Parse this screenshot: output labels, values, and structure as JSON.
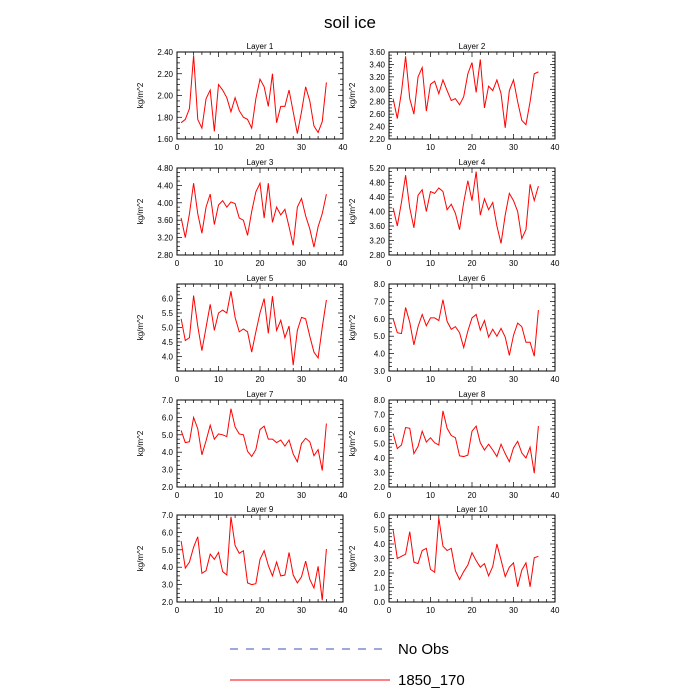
{
  "figure": {
    "title": "soil ice",
    "legend": {
      "placement": "bottom-center",
      "items": [
        {
          "label": "No Obs",
          "color": "#3a50c8",
          "style": "dashed"
        },
        {
          "label": "1850_170",
          "color": "#ff0000",
          "style": "solid"
        }
      ]
    }
  },
  "chart_data": [
    {
      "type": "line",
      "title": "Layer 1",
      "xlabel": "",
      "ylabel": "kg/m^2",
      "xlim": [
        0,
        40
      ],
      "ylim": [
        1.6,
        2.4
      ],
      "xticks": [
        0,
        10,
        20,
        30,
        40
      ],
      "yticks": [
        1.6,
        1.8,
        2.0,
        2.2,
        2.4
      ],
      "x": [
        1,
        2,
        3,
        4,
        5,
        6,
        7,
        8,
        9,
        10,
        11,
        12,
        13,
        14,
        15,
        16,
        17,
        18,
        19,
        20,
        21,
        22,
        23,
        24,
        25,
        26,
        27,
        28,
        29,
        30,
        31,
        32,
        33,
        34,
        35,
        36
      ],
      "series": [
        {
          "name": "1850_170",
          "color": "#ff0000",
          "values": [
            1.75,
            1.78,
            1.88,
            2.37,
            1.78,
            1.7,
            1.97,
            2.05,
            1.67,
            2.1,
            2.05,
            1.98,
            1.85,
            1.98,
            1.86,
            1.8,
            1.78,
            1.7,
            1.97,
            2.15,
            2.08,
            1.9,
            2.2,
            1.75,
            1.9,
            1.9,
            2.05,
            1.85,
            1.65,
            1.85,
            2.08,
            1.95,
            1.72,
            1.66,
            1.76,
            2.12
          ]
        }
      ]
    },
    {
      "type": "line",
      "title": "Layer 2",
      "xlabel": "",
      "ylabel": "kg/m^2",
      "xlim": [
        0,
        40
      ],
      "ylim": [
        2.2,
        3.6
      ],
      "xticks": [
        0,
        10,
        20,
        30,
        40
      ],
      "yticks": [
        2.2,
        2.4,
        2.6,
        2.8,
        3.0,
        3.2,
        3.4,
        3.6
      ],
      "x": [
        1,
        2,
        3,
        4,
        5,
        6,
        7,
        8,
        9,
        10,
        11,
        12,
        13,
        14,
        15,
        16,
        17,
        18,
        19,
        20,
        21,
        22,
        23,
        24,
        25,
        26,
        27,
        28,
        29,
        30,
        31,
        32,
        33,
        34,
        35,
        36
      ],
      "series": [
        {
          "name": "1850_170",
          "color": "#ff0000",
          "values": [
            2.85,
            2.53,
            2.95,
            3.53,
            2.85,
            2.6,
            3.2,
            3.35,
            2.65,
            3.08,
            3.13,
            2.93,
            3.15,
            2.98,
            2.82,
            2.85,
            2.75,
            2.88,
            3.25,
            3.43,
            2.95,
            3.48,
            2.7,
            3.05,
            2.98,
            3.15,
            2.93,
            2.38,
            2.98,
            3.15,
            2.8,
            2.5,
            2.43,
            2.8,
            3.25,
            3.28
          ]
        }
      ]
    },
    {
      "type": "line",
      "title": "Layer 3",
      "xlabel": "",
      "ylabel": "kg/m^2",
      "xlim": [
        0,
        40
      ],
      "ylim": [
        2.8,
        4.8
      ],
      "xticks": [
        0,
        10,
        20,
        30,
        40
      ],
      "yticks": [
        2.8,
        3.2,
        3.6,
        4.0,
        4.4,
        4.8
      ],
      "x": [
        1,
        2,
        3,
        4,
        5,
        6,
        7,
        8,
        9,
        10,
        11,
        12,
        13,
        14,
        15,
        16,
        17,
        18,
        19,
        20,
        21,
        22,
        23,
        24,
        25,
        26,
        27,
        28,
        29,
        30,
        31,
        32,
        33,
        34,
        35,
        36
      ],
      "series": [
        {
          "name": "1850_170",
          "color": "#ff0000",
          "values": [
            3.65,
            3.2,
            3.75,
            4.45,
            3.75,
            3.3,
            3.9,
            4.2,
            3.5,
            3.95,
            4.05,
            3.9,
            4.02,
            3.98,
            3.65,
            3.6,
            3.25,
            3.8,
            4.25,
            4.45,
            3.65,
            4.45,
            3.55,
            3.9,
            3.72,
            3.85,
            3.45,
            3.02,
            3.9,
            4.1,
            3.7,
            3.4,
            2.98,
            3.45,
            3.75,
            4.2
          ]
        }
      ]
    },
    {
      "type": "line",
      "title": "Layer 4",
      "xlabel": "",
      "ylabel": "kg/m^2",
      "xlim": [
        0,
        40
      ],
      "ylim": [
        2.8,
        5.2
      ],
      "xticks": [
        0,
        10,
        20,
        30,
        40
      ],
      "yticks": [
        2.8,
        3.2,
        3.6,
        4.0,
        4.4,
        4.8,
        5.2
      ],
      "x": [
        1,
        2,
        3,
        4,
        5,
        6,
        7,
        8,
        9,
        10,
        11,
        12,
        13,
        14,
        15,
        16,
        17,
        18,
        19,
        20,
        21,
        22,
        23,
        24,
        25,
        26,
        27,
        28,
        29,
        30,
        31,
        32,
        33,
        34,
        35,
        36
      ],
      "series": [
        {
          "name": "1850_170",
          "color": "#ff0000",
          "values": [
            4.1,
            3.6,
            4.25,
            5.0,
            4.1,
            3.55,
            4.45,
            4.6,
            4.0,
            4.55,
            4.5,
            4.65,
            4.55,
            4.05,
            4.2,
            3.95,
            3.5,
            4.25,
            4.85,
            4.3,
            5.1,
            3.9,
            4.35,
            4.05,
            4.25,
            3.6,
            3.12,
            3.9,
            4.5,
            4.3,
            4.0,
            3.25,
            3.5,
            4.75,
            4.3,
            4.7
          ]
        }
      ]
    },
    {
      "type": "line",
      "title": "Layer 5",
      "xlabel": "",
      "ylabel": "kg/m^2",
      "xlim": [
        0,
        40
      ],
      "ylim": [
        3.5,
        6.5
      ],
      "xticks": [
        0,
        10,
        20,
        30,
        40
      ],
      "yticks": [
        4.0,
        4.5,
        5.0,
        5.5,
        6.0
      ],
      "x": [
        1,
        2,
        3,
        4,
        5,
        6,
        7,
        8,
        9,
        10,
        11,
        12,
        13,
        14,
        15,
        16,
        17,
        18,
        19,
        20,
        21,
        22,
        23,
        24,
        25,
        26,
        27,
        28,
        29,
        30,
        31,
        32,
        33,
        34,
        35,
        36
      ],
      "series": [
        {
          "name": "1850_170",
          "color": "#ff0000",
          "values": [
            5.3,
            4.55,
            4.65,
            6.1,
            5.05,
            4.2,
            5.0,
            5.8,
            4.9,
            5.5,
            5.6,
            5.5,
            6.25,
            5.35,
            4.85,
            4.95,
            4.85,
            4.15,
            4.85,
            5.5,
            6.0,
            4.8,
            6.08,
            4.9,
            5.25,
            4.65,
            5.05,
            3.7,
            4.9,
            5.35,
            5.3,
            4.7,
            4.15,
            3.95,
            5.0,
            5.95
          ]
        }
      ]
    },
    {
      "type": "line",
      "title": "Layer 6",
      "xlabel": "",
      "ylabel": "kg/m^2",
      "xlim": [
        0,
        40
      ],
      "ylim": [
        3.0,
        8.0
      ],
      "xticks": [
        0,
        10,
        20,
        30,
        40
      ],
      "yticks": [
        3.0,
        4.0,
        5.0,
        6.0,
        7.0,
        8.0
      ],
      "x": [
        1,
        2,
        3,
        4,
        5,
        6,
        7,
        8,
        9,
        10,
        11,
        12,
        13,
        14,
        15,
        16,
        17,
        18,
        19,
        20,
        21,
        22,
        23,
        24,
        25,
        26,
        27,
        28,
        29,
        30,
        31,
        32,
        33,
        34,
        35,
        36
      ],
      "series": [
        {
          "name": "1850_170",
          "color": "#ff0000",
          "values": [
            6.0,
            5.2,
            5.15,
            6.65,
            5.8,
            4.5,
            5.55,
            6.25,
            5.6,
            6.05,
            6.05,
            5.9,
            7.1,
            5.85,
            5.4,
            5.55,
            5.2,
            4.35,
            5.3,
            6.05,
            6.25,
            5.35,
            5.9,
            4.95,
            5.4,
            5.0,
            5.45,
            4.95,
            3.9,
            5.05,
            5.75,
            5.55,
            4.65,
            4.65,
            3.85,
            6.5
          ]
        }
      ]
    },
    {
      "type": "line",
      "title": "Layer 7",
      "xlabel": "",
      "ylabel": "kg/m^2",
      "xlim": [
        0,
        40
      ],
      "ylim": [
        2.0,
        7.0
      ],
      "xticks": [
        0,
        10,
        20,
        30,
        40
      ],
      "yticks": [
        2.0,
        3.0,
        4.0,
        5.0,
        6.0,
        7.0
      ],
      "x": [
        1,
        2,
        3,
        4,
        5,
        6,
        7,
        8,
        9,
        10,
        11,
        12,
        13,
        14,
        15,
        16,
        17,
        18,
        19,
        20,
        21,
        22,
        23,
        24,
        25,
        26,
        27,
        28,
        29,
        30,
        31,
        32,
        33,
        34,
        35,
        36
      ],
      "series": [
        {
          "name": "1850_170",
          "color": "#ff0000",
          "values": [
            5.25,
            4.55,
            4.6,
            6.0,
            5.35,
            3.85,
            4.65,
            5.55,
            4.75,
            5.05,
            5.0,
            4.9,
            6.5,
            5.45,
            5.05,
            5.0,
            4.05,
            3.75,
            4.15,
            5.3,
            5.5,
            4.75,
            4.75,
            4.55,
            4.7,
            4.35,
            4.7,
            3.9,
            3.45,
            4.5,
            4.8,
            4.6,
            3.8,
            4.15,
            2.95,
            5.65
          ]
        }
      ]
    },
    {
      "type": "line",
      "title": "Layer 8",
      "xlabel": "",
      "ylabel": "kg/m^2",
      "xlim": [
        0,
        40
      ],
      "ylim": [
        2.0,
        8.0
      ],
      "xticks": [
        0,
        10,
        20,
        30,
        40
      ],
      "yticks": [
        2.0,
        3.0,
        4.0,
        5.0,
        6.0,
        7.0,
        8.0
      ],
      "x": [
        1,
        2,
        3,
        4,
        5,
        6,
        7,
        8,
        9,
        10,
        11,
        12,
        13,
        14,
        15,
        16,
        17,
        18,
        19,
        20,
        21,
        22,
        23,
        24,
        25,
        26,
        27,
        28,
        29,
        30,
        31,
        32,
        33,
        34,
        35,
        36
      ],
      "series": [
        {
          "name": "1850_170",
          "color": "#ff0000",
          "values": [
            5.7,
            4.65,
            4.9,
            6.1,
            6.05,
            4.3,
            4.8,
            5.85,
            5.1,
            5.4,
            5.05,
            4.9,
            7.25,
            6.05,
            5.55,
            5.4,
            4.15,
            4.1,
            4.2,
            5.85,
            6.2,
            5.05,
            4.55,
            4.95,
            4.55,
            4.1,
            4.95,
            4.3,
            3.75,
            4.7,
            5.15,
            4.35,
            4.0,
            4.75,
            2.95,
            6.2
          ]
        }
      ]
    },
    {
      "type": "line",
      "title": "Layer 9",
      "xlabel": "",
      "ylabel": "kg/m^2",
      "xlim": [
        0,
        40
      ],
      "ylim": [
        2.0,
        7.0
      ],
      "xticks": [
        0,
        10,
        20,
        30,
        40
      ],
      "yticks": [
        2.0,
        3.0,
        4.0,
        5.0,
        6.0,
        7.0
      ],
      "x": [
        1,
        2,
        3,
        4,
        5,
        6,
        7,
        8,
        9,
        10,
        11,
        12,
        13,
        14,
        15,
        16,
        17,
        18,
        19,
        20,
        21,
        22,
        23,
        24,
        25,
        26,
        27,
        28,
        29,
        30,
        31,
        32,
        33,
        34,
        35,
        36
      ],
      "series": [
        {
          "name": "1850_170",
          "color": "#ff0000",
          "values": [
            5.5,
            3.95,
            4.3,
            5.15,
            5.75,
            3.65,
            3.8,
            4.75,
            4.45,
            4.85,
            3.75,
            3.55,
            6.9,
            5.25,
            4.8,
            4.95,
            3.1,
            3.0,
            3.05,
            4.45,
            4.95,
            4.1,
            3.5,
            4.3,
            3.5,
            3.55,
            4.85,
            3.55,
            3.1,
            3.45,
            4.35,
            3.3,
            2.8,
            4.05,
            2.1,
            5.05
          ]
        }
      ]
    },
    {
      "type": "line",
      "title": "Layer 10",
      "xlabel": "",
      "ylabel": "kg/m^2",
      "xlim": [
        0,
        40
      ],
      "ylim": [
        0.0,
        6.0
      ],
      "xticks": [
        0,
        10,
        20,
        30,
        40
      ],
      "yticks": [
        0.0,
        1.0,
        2.0,
        3.0,
        4.0,
        5.0,
        6.0
      ],
      "x": [
        1,
        2,
        3,
        4,
        5,
        6,
        7,
        8,
        9,
        10,
        11,
        12,
        13,
        14,
        15,
        16,
        17,
        18,
        19,
        20,
        21,
        22,
        23,
        24,
        25,
        26,
        27,
        28,
        29,
        30,
        31,
        32,
        33,
        34,
        35,
        36
      ],
      "series": [
        {
          "name": "1850_170",
          "color": "#ff0000",
          "values": [
            4.95,
            3.0,
            3.15,
            3.3,
            4.85,
            2.75,
            2.65,
            3.55,
            3.7,
            2.25,
            2.05,
            5.8,
            3.85,
            3.55,
            3.7,
            2.15,
            1.55,
            2.1,
            2.55,
            3.4,
            2.85,
            2.4,
            2.65,
            1.8,
            2.45,
            4.0,
            2.9,
            1.75,
            2.4,
            2.7,
            1.05,
            2.2,
            2.7,
            1.05,
            3.05,
            3.15
          ]
        }
      ]
    }
  ]
}
